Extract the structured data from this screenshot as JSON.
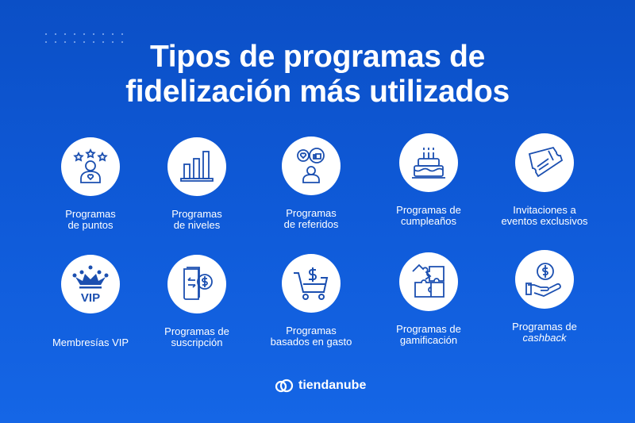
{
  "title": "Tipos de programas de\nfidelización más utilizados",
  "items": [
    {
      "icon": "stars-person-icon",
      "label": "Programas\nde puntos"
    },
    {
      "icon": "bar-chart-icon",
      "label": "Programas\nde niveles"
    },
    {
      "icon": "referral-person-icon",
      "label": "Programas\nde referidos"
    },
    {
      "icon": "birthday-cake-icon",
      "label": "Programas de\ncumpleaños"
    },
    {
      "icon": "ticket-icon",
      "label": "Invitaciones a\neventos exclusivos"
    },
    {
      "icon": "vip-crown-icon",
      "label": "Membresías VIP"
    },
    {
      "icon": "subscription-icon",
      "label": "Programas de\nsuscripción"
    },
    {
      "icon": "shopping-cart-dollar-icon",
      "label": "Programas\nbasados en gasto"
    },
    {
      "icon": "puzzle-icon",
      "label": "Programas de\ngamificación"
    },
    {
      "icon": "hand-coin-icon",
      "label_prefix": "Programas de",
      "label_em": "cashback"
    }
  ],
  "brand": {
    "name": "tiendanube",
    "icon": "tiendanube-logo-icon"
  },
  "colors": {
    "background": "#0f5ad8",
    "icon": "#1b4fb0"
  }
}
